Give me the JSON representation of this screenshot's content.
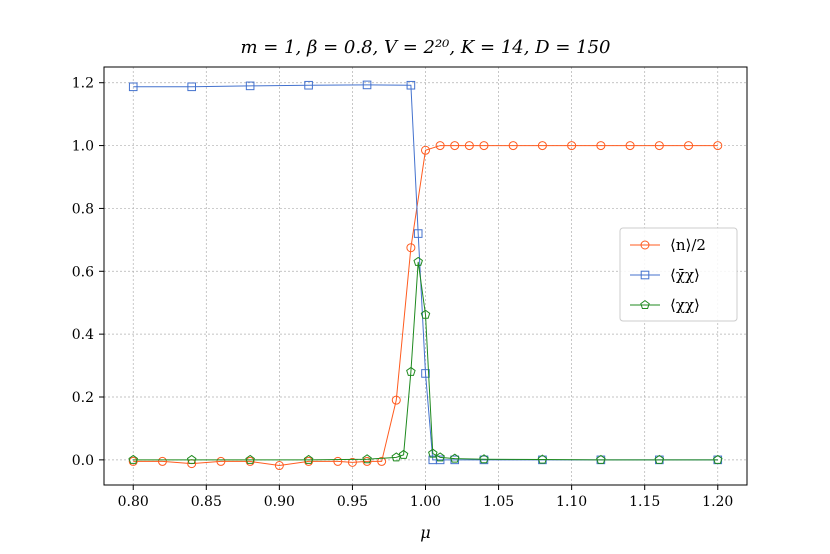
{
  "chart_data": {
    "type": "line",
    "title": "m = 1, β = 0.8, V = 2²⁰, K = 14, D = 150",
    "xlabel": "μ",
    "ylabel": "",
    "xlim": [
      0.78,
      1.22
    ],
    "ylim": [
      -0.08,
      1.25
    ],
    "xticks": [
      0.8,
      0.85,
      0.9,
      0.95,
      1.0,
      1.05,
      1.1,
      1.15,
      1.2
    ],
    "xtick_labels": [
      "0.80",
      "0.85",
      "0.90",
      "0.95",
      "1.00",
      "1.05",
      "1.10",
      "1.15",
      "1.20"
    ],
    "yticks": [
      0.0,
      0.2,
      0.4,
      0.6,
      0.8,
      1.0,
      1.2
    ],
    "ytick_labels": [
      "0.0",
      "0.2",
      "0.4",
      "0.6",
      "0.8",
      "1.0",
      "1.2"
    ],
    "grid": true,
    "legend_position": "center-right",
    "series": [
      {
        "name": "⟨n⟩/2",
        "color": "#ff5b1f",
        "marker": "circle",
        "x": [
          0.8,
          0.82,
          0.84,
          0.86,
          0.88,
          0.9,
          0.92,
          0.94,
          0.95,
          0.96,
          0.97,
          0.98,
          0.99,
          1.0,
          1.01,
          1.02,
          1.03,
          1.04,
          1.06,
          1.08,
          1.1,
          1.12,
          1.14,
          1.16,
          1.18,
          1.2
        ],
        "y": [
          -0.005,
          -0.005,
          -0.012,
          -0.005,
          -0.005,
          -0.018,
          -0.005,
          -0.005,
          -0.008,
          -0.005,
          -0.005,
          0.19,
          0.675,
          0.985,
          1.0,
          1.0,
          1.0,
          1.0,
          1.0,
          1.0,
          1.0,
          1.0,
          1.0,
          1.0,
          1.0,
          1.0
        ]
      },
      {
        "name": "⟨χ̄χ⟩",
        "color": "#4472ce",
        "marker": "square",
        "x": [
          0.8,
          0.84,
          0.88,
          0.92,
          0.96,
          0.99,
          0.995,
          1.0,
          1.005,
          1.01,
          1.02,
          1.04,
          1.08,
          1.12,
          1.16,
          1.2
        ],
        "y": [
          1.187,
          1.187,
          1.19,
          1.192,
          1.193,
          1.192,
          0.72,
          0.275,
          0.0,
          0.0,
          0.0,
          0.0,
          0.0,
          0.0,
          0.0,
          0.0
        ]
      },
      {
        "name": "⟨χχ⟩",
        "color": "#1f8a1f",
        "marker": "pentagon",
        "x": [
          0.8,
          0.84,
          0.88,
          0.92,
          0.96,
          0.98,
          0.985,
          0.99,
          0.995,
          1.0,
          1.005,
          1.01,
          1.02,
          1.04,
          1.08,
          1.12,
          1.16,
          1.2
        ],
        "y": [
          0.0,
          0.0,
          0.0,
          0.0,
          0.002,
          0.008,
          0.016,
          0.28,
          0.63,
          0.462,
          0.02,
          0.008,
          0.004,
          0.002,
          0.001,
          0.0,
          0.0,
          0.0
        ]
      }
    ]
  }
}
